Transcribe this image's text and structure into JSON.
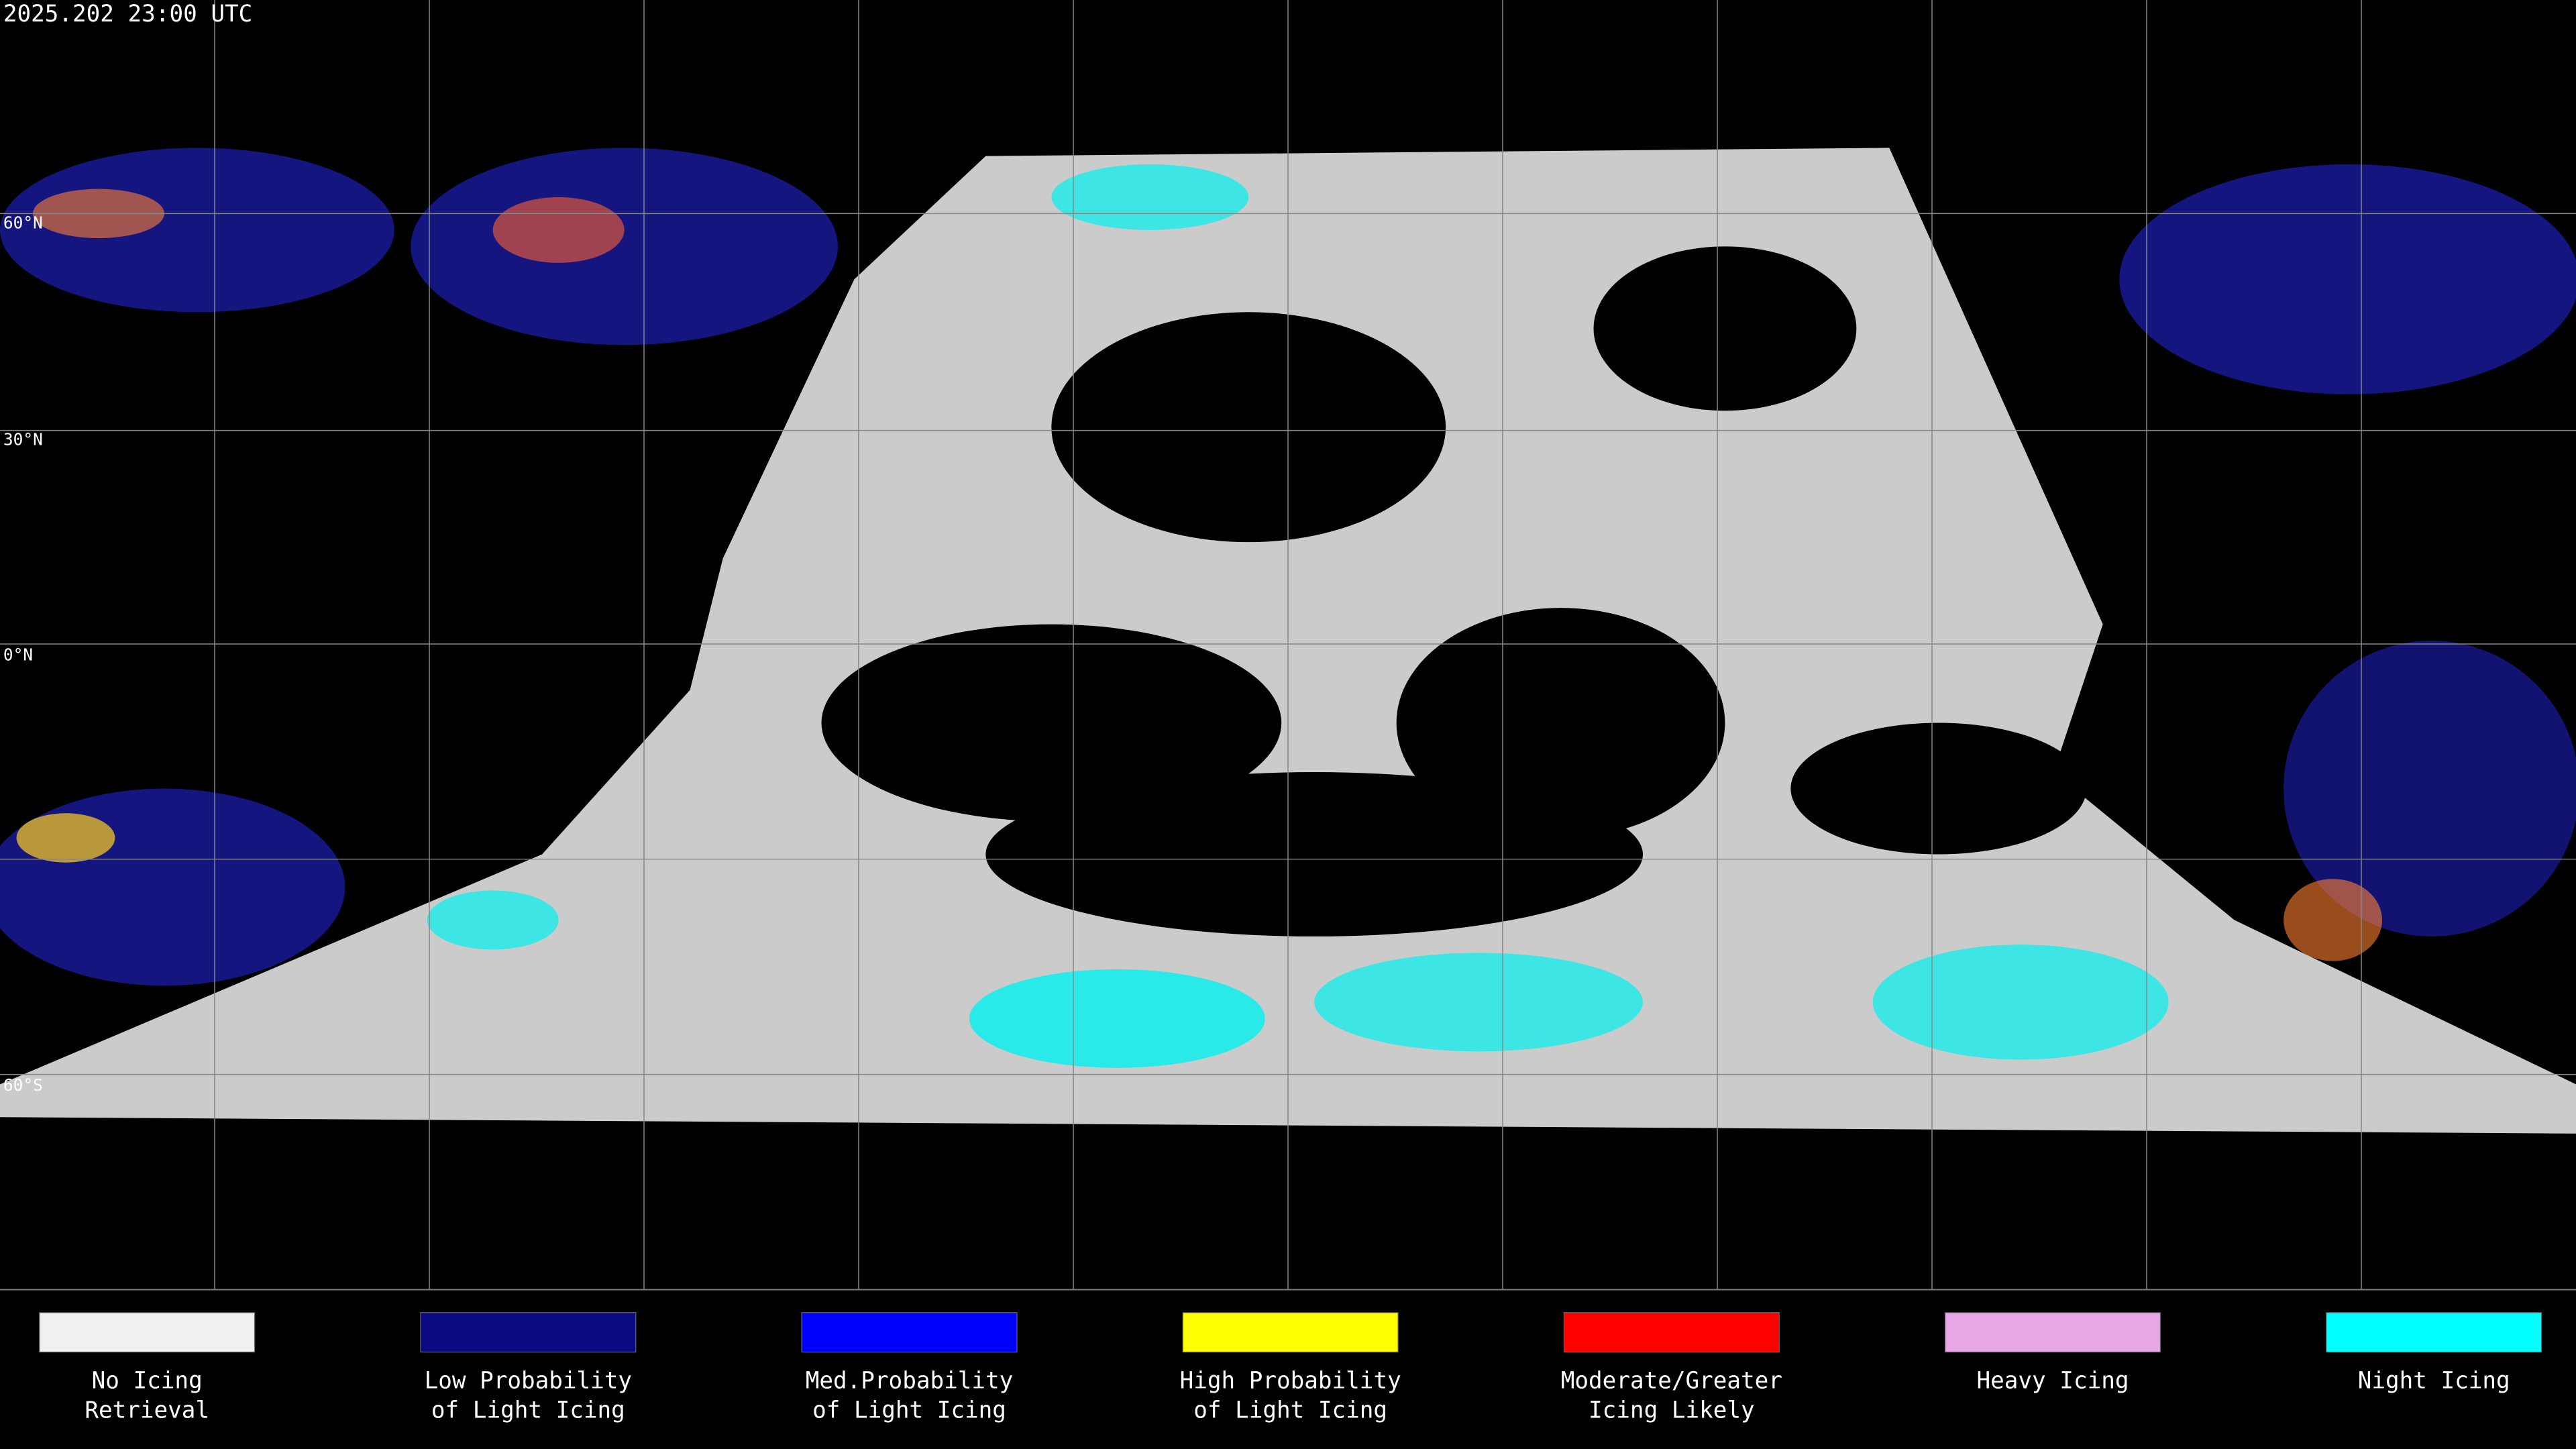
{
  "header": {
    "timestamp": "2025.202 23:00 UTC"
  },
  "map": {
    "latitude_labels": [
      "60°N",
      "30°N",
      "0°N",
      "60°S"
    ]
  },
  "legend": [
    {
      "color": "#f0f0f0",
      "label": [
        "No Icing",
        "Retrieval"
      ]
    },
    {
      "color": "#0a0a80",
      "label": [
        "Low Probability",
        "of Light Icing"
      ]
    },
    {
      "color": "#0000ff",
      "label": [
        "Med.Probability",
        "of Light Icing"
      ]
    },
    {
      "color": "#ffff00",
      "label": [
        "High Probability",
        "of Light Icing"
      ]
    },
    {
      "color": "#ff0000",
      "label": [
        "Moderate/Greater",
        "Icing Likely"
      ]
    },
    {
      "color": "#e8a8e8",
      "label": [
        "Heavy Icing"
      ]
    },
    {
      "color": "#00ffff",
      "label": [
        "Night Icing"
      ]
    }
  ]
}
